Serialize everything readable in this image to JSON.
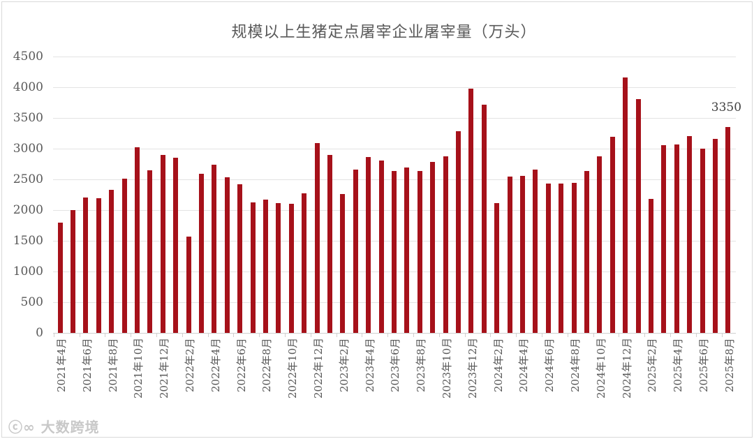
{
  "chart_data": {
    "type": "bar",
    "title": "规模以上生猪定点屠宰企业屠宰量（万头）",
    "xlabel": "",
    "ylabel": "",
    "ylim": [
      0,
      4500
    ],
    "yticks": [
      0,
      500,
      1000,
      1500,
      2000,
      2500,
      3000,
      3500,
      4000,
      4500
    ],
    "grid": true,
    "legend": "none",
    "bar_color": "#A6111A",
    "categories": [
      "2021年4月",
      "2021年5月",
      "2021年6月",
      "2021年7月",
      "2021年8月",
      "2021年9月",
      "2021年10月",
      "2021年11月",
      "2021年12月",
      "2022年1月",
      "2022年2月",
      "2022年3月",
      "2022年4月",
      "2022年5月",
      "2022年6月",
      "2022年7月",
      "2022年8月",
      "2022年9月",
      "2022年10月",
      "2022年11月",
      "2022年12月",
      "2023年1月",
      "2023年2月",
      "2023年3月",
      "2023年4月",
      "2023年5月",
      "2023年6月",
      "2023年7月",
      "2023年8月",
      "2023年9月",
      "2023年10月",
      "2023年11月",
      "2023年12月",
      "2024年1月",
      "2024年2月",
      "2024年3月",
      "2024年4月",
      "2024年5月",
      "2024年6月",
      "2024年7月",
      "2024年8月",
      "2024年9月",
      "2024年10月",
      "2024年11月",
      "2024年12月",
      "2025年1月",
      "2025年2月",
      "2025年3月",
      "2025年4月",
      "2025年5月",
      "2025年6月",
      "2025年7月",
      "2025年8月"
    ],
    "values": [
      1800,
      2000,
      2200,
      2190,
      2330,
      2510,
      3020,
      2650,
      2900,
      2850,
      1570,
      2590,
      2740,
      2530,
      2420,
      2120,
      2170,
      2110,
      2100,
      2270,
      3090,
      2900,
      2260,
      2660,
      2860,
      2810,
      2640,
      2690,
      2640,
      2780,
      2870,
      3280,
      3980,
      3720,
      2110,
      2540,
      2560,
      2660,
      2430,
      2430,
      2440,
      2640,
      2880,
      3190,
      4160,
      3810,
      2180,
      3060,
      3070,
      3210,
      3000,
      3160,
      3350
    ],
    "visible_xlabels": [
      "2021年4月",
      "2021年6月",
      "2021年8月",
      "2021年10月",
      "2021年12月",
      "2022年2月",
      "2022年4月",
      "2022年6月",
      "2022年8月",
      "2022年10月",
      "2022年12月",
      "2023年2月",
      "2023年4月",
      "2023年6月",
      "2023年8月",
      "2023年10月",
      "2023年12月",
      "2024年2月",
      "2024年4月",
      "2024年6月",
      "2024年8月",
      "2024年10月",
      "2024年12月",
      "2025年2月",
      "2025年4月",
      "2025年6月",
      "2025年8月"
    ],
    "annotations": [
      {
        "category": "2025年8月",
        "text": "3350"
      }
    ]
  },
  "watermark": "大数跨境"
}
